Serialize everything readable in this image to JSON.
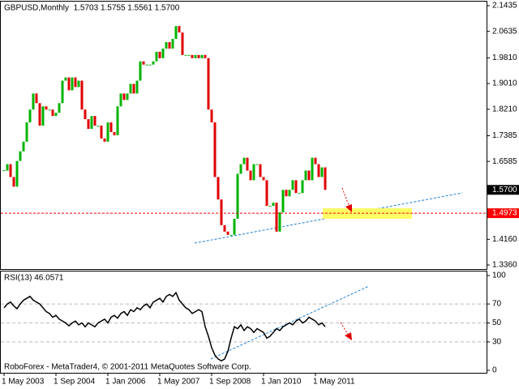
{
  "chart_data": [
    {
      "type": "candlestick",
      "title": "GBPUSD,Monthly  1.5703 1.5755 1.5561 1.5700",
      "up_color": "#00b400",
      "down_color": "#e00000",
      "close": [
        1.63,
        1.65,
        1.61,
        1.58,
        1.66,
        1.69,
        1.72,
        1.78,
        1.82,
        1.87,
        1.84,
        1.77,
        1.83,
        1.82,
        1.82,
        1.8,
        1.81,
        1.84,
        1.91,
        1.92,
        1.88,
        1.92,
        1.89,
        1.91,
        1.82,
        1.79,
        1.76,
        1.8,
        1.77,
        1.77,
        1.73,
        1.72,
        1.78,
        1.75,
        1.74,
        1.83,
        1.87,
        1.85,
        1.87,
        1.9,
        1.87,
        1.91,
        1.97,
        1.96,
        1.96,
        1.96,
        1.97,
        2.0,
        1.98,
        2.01,
        2.03,
        2.01,
        2.04,
        2.08,
        2.06,
        1.99,
        1.99,
        1.99,
        1.98,
        1.99,
        1.98,
        1.99,
        1.98,
        1.82,
        1.78,
        1.61,
        1.54,
        1.46,
        1.44,
        1.43,
        1.43,
        1.48,
        1.62,
        1.65,
        1.67,
        1.63,
        1.6,
        1.65,
        1.65,
        1.61,
        1.6,
        1.52,
        1.52,
        1.53,
        1.44,
        1.5,
        1.57,
        1.55,
        1.57,
        1.6,
        1.56,
        1.56,
        1.6,
        1.63,
        1.6,
        1.67,
        1.65,
        1.61,
        1.64,
        1.57
      ],
      "ylim": [
        1.336,
        2.1435
      ],
      "yticks": [
        2.1435,
        2.0635,
        {
          "value": 1.981,
          "label": "1.9810"
        },
        {
          "value": 1.901,
          "label": "1.9010"
        },
        {
          "value": 1.821,
          "label": "1.8210"
        },
        1.7385,
        1.6585,
        {
          "value": 1.416,
          "label": "1.4160"
        },
        {
          "value": 1.336,
          "label": "1.3360"
        }
      ],
      "price_label": {
        "value": 1.57,
        "label": "1.5700"
      },
      "level_line": {
        "value": 1.4973,
        "color": "#ff0000"
      }
    },
    {
      "type": "line",
      "title": "RSI(13) 46.0571",
      "color": "#000000",
      "values": [
        66,
        70,
        72,
        68,
        65,
        70,
        74,
        76,
        78,
        74,
        72,
        70,
        66,
        62,
        60,
        56,
        58,
        54,
        52,
        50,
        47,
        50,
        52,
        48,
        50,
        46,
        50,
        48,
        46,
        50,
        52,
        54,
        50,
        56,
        58,
        55,
        60,
        62,
        58,
        64,
        62,
        66,
        64,
        68,
        70,
        66,
        72,
        74,
        76,
        72,
        78,
        80,
        78,
        82,
        74,
        70,
        66,
        64,
        60,
        62,
        64,
        62,
        46,
        36,
        24,
        16,
        12,
        10,
        12,
        20,
        34,
        46,
        44,
        48,
        42,
        46,
        44,
        40,
        44,
        42,
        40,
        34,
        36,
        40,
        44,
        42,
        46,
        48,
        50,
        48,
        52,
        54,
        50,
        52,
        56,
        54,
        52,
        48,
        50,
        46.0571
      ],
      "ylim": [
        0,
        100
      ],
      "yticks": [
        100,
        70,
        50,
        30,
        0
      ],
      "grid": true,
      "categories": [
        "1 May 2003",
        null,
        null,
        null,
        null,
        null,
        null,
        null,
        null,
        null,
        null,
        null,
        null,
        null,
        null,
        null,
        "1 Sep 2004",
        null,
        null,
        null,
        null,
        null,
        null,
        null,
        null,
        null,
        null,
        null,
        null,
        null,
        null,
        null,
        "1 Jan 2006",
        null,
        null,
        null,
        null,
        null,
        null,
        null,
        null,
        null,
        null,
        null,
        null,
        null,
        null,
        null,
        "1 May 2007",
        null,
        null,
        null,
        null,
        null,
        null,
        null,
        null,
        null,
        null,
        null,
        null,
        null,
        null,
        null,
        "1 Sep 2008",
        null,
        null,
        null,
        null,
        null,
        null,
        null,
        null,
        null,
        null,
        null,
        null,
        null,
        null,
        null,
        "1 Jan 2010",
        null,
        null,
        null,
        null,
        null,
        null,
        null,
        null,
        null,
        null,
        null,
        null,
        null,
        null,
        null,
        "1 May 2011",
        null,
        null,
        null
      ],
      "annotation": "RoboForex - MetaTrader4, © 2001-2011 MetaQuotes Software Corp."
    }
  ]
}
